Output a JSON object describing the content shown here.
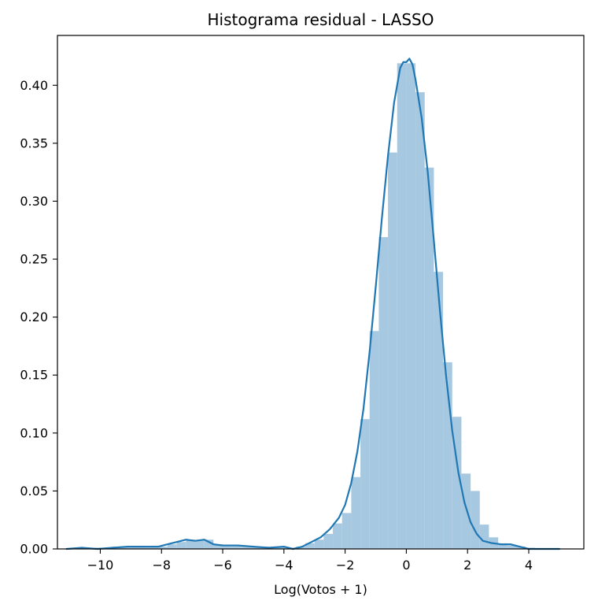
{
  "chart_data": {
    "type": "bar",
    "title": "Histograma residual - LASSO",
    "xlabel": "Log(Votos + 1)",
    "ylabel": "",
    "xlim": [
      -11.4,
      5.8
    ],
    "ylim": [
      0,
      0.443
    ],
    "xticks": [
      -10,
      -8,
      -6,
      -4,
      -2,
      0,
      2,
      4
    ],
    "xtick_labels": [
      "−10",
      "−8",
      "−6",
      "−4",
      "−2",
      "0",
      "2",
      "4"
    ],
    "yticks": [
      0.0,
      0.05,
      0.1,
      0.15,
      0.2,
      0.25,
      0.3,
      0.35,
      0.4
    ],
    "ytick_labels": [
      "0.00",
      "0.05",
      "0.10",
      "0.15",
      "0.20",
      "0.25",
      "0.30",
      "0.35",
      "0.40"
    ],
    "histogram": {
      "bin_edges": [
        -11.1,
        -10.8,
        -10.5,
        -10.2,
        -9.9,
        -9.6,
        -9.3,
        -9.0,
        -8.7,
        -8.4,
        -8.1,
        -7.8,
        -7.5,
        -7.2,
        -6.9,
        -6.6,
        -6.3,
        -6.0,
        -5.7,
        -5.4,
        -5.1,
        -4.8,
        -4.5,
        -4.2,
        -3.9,
        -3.6,
        -3.3,
        -3.0,
        -2.7,
        -2.4,
        -2.1,
        -1.8,
        -1.5,
        -1.2,
        -0.9,
        -0.6,
        -0.3,
        0.0,
        0.3,
        0.6,
        0.9,
        1.2,
        1.5,
        1.8,
        2.1,
        2.4,
        2.7,
        3.0,
        3.3,
        3.6,
        3.9,
        4.2,
        4.5,
        4.8
      ],
      "counts": [
        0.0,
        0.001,
        0.0,
        0.001,
        0.001,
        0.002,
        0.002,
        0.002,
        0.002,
        0.002,
        0.002,
        0.004,
        0.006,
        0.008,
        0.007,
        0.008,
        0.004,
        0.003,
        0.003,
        0.002,
        0.002,
        0.002,
        0.001,
        0.002,
        0.001,
        0.002,
        0.005,
        0.008,
        0.013,
        0.022,
        0.031,
        0.062,
        0.112,
        0.188,
        0.269,
        0.342,
        0.419,
        0.419,
        0.394,
        0.329,
        0.239,
        0.161,
        0.114,
        0.065,
        0.05,
        0.021,
        0.01,
        0.004,
        0.003,
        0.002,
        0.001,
        0.0,
        0.0
      ],
      "color": "#a6c8e0"
    },
    "kde": {
      "x": [
        -11.1,
        -10.6,
        -10.1,
        -9.6,
        -9.1,
        -8.6,
        -8.1,
        -7.8,
        -7.5,
        -7.2,
        -6.9,
        -6.6,
        -6.3,
        -6.0,
        -5.5,
        -5.0,
        -4.5,
        -4.0,
        -3.7,
        -3.4,
        -3.1,
        -2.8,
        -2.5,
        -2.2,
        -2.0,
        -1.8,
        -1.6,
        -1.4,
        -1.2,
        -1.0,
        -0.8,
        -0.6,
        -0.4,
        -0.2,
        -0.1,
        0.0,
        0.1,
        0.2,
        0.3,
        0.5,
        0.7,
        0.9,
        1.1,
        1.3,
        1.5,
        1.7,
        1.9,
        2.1,
        2.3,
        2.5,
        2.8,
        3.1,
        3.4,
        3.7,
        4.0,
        4.5,
        5.0
      ],
      "y": [
        0.0,
        0.001,
        0.0,
        0.001,
        0.002,
        0.002,
        0.002,
        0.004,
        0.006,
        0.008,
        0.007,
        0.008,
        0.004,
        0.003,
        0.003,
        0.002,
        0.001,
        0.002,
        0.0,
        0.002,
        0.006,
        0.01,
        0.017,
        0.027,
        0.038,
        0.057,
        0.084,
        0.121,
        0.17,
        0.226,
        0.285,
        0.339,
        0.385,
        0.415,
        0.42,
        0.42,
        0.423,
        0.418,
        0.405,
        0.372,
        0.325,
        0.266,
        0.205,
        0.149,
        0.102,
        0.066,
        0.04,
        0.023,
        0.013,
        0.007,
        0.005,
        0.004,
        0.004,
        0.002,
        0.0,
        0.0,
        0.0
      ],
      "color": "#1f77b4"
    },
    "grid": false,
    "legend": "none"
  }
}
